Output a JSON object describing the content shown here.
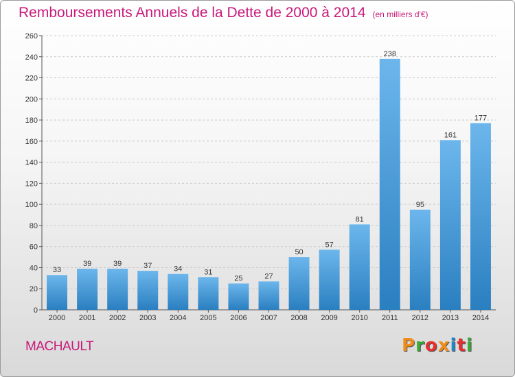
{
  "header": {
    "title": "Remboursements Annuels de la Dette de 2000 à 2014",
    "unit": "(en milliers d'€)"
  },
  "footer": {
    "commune": "MACHAULT",
    "brand": "Proxiti"
  },
  "colors": {
    "title": "#c8197a",
    "bar_light": "#6cb6ec",
    "bar_dark": "#2a7fc0",
    "brand": [
      "#f08c1a",
      "#39a935",
      "#e62f2f",
      "#f08c1a",
      "#1e88c8",
      "#e62f2f",
      "#39a935"
    ]
  },
  "chart_data": {
    "type": "bar",
    "title": "Remboursements Annuels de la Dette de 2000 à 2014",
    "xlabel": "",
    "ylabel": "",
    "categories": [
      "2000",
      "2001",
      "2002",
      "2003",
      "2004",
      "2005",
      "2006",
      "2007",
      "2008",
      "2009",
      "2010",
      "2011",
      "2012",
      "2013",
      "2014"
    ],
    "values": [
      33,
      39,
      39,
      37,
      34,
      31,
      25,
      27,
      50,
      57,
      81,
      238,
      95,
      161,
      177
    ],
    "ylim": [
      0,
      260
    ],
    "yticks": [
      0,
      20,
      40,
      60,
      80,
      100,
      120,
      140,
      160,
      180,
      200,
      220,
      240,
      260
    ],
    "grid": "dashed horizontal",
    "legend": "none"
  }
}
